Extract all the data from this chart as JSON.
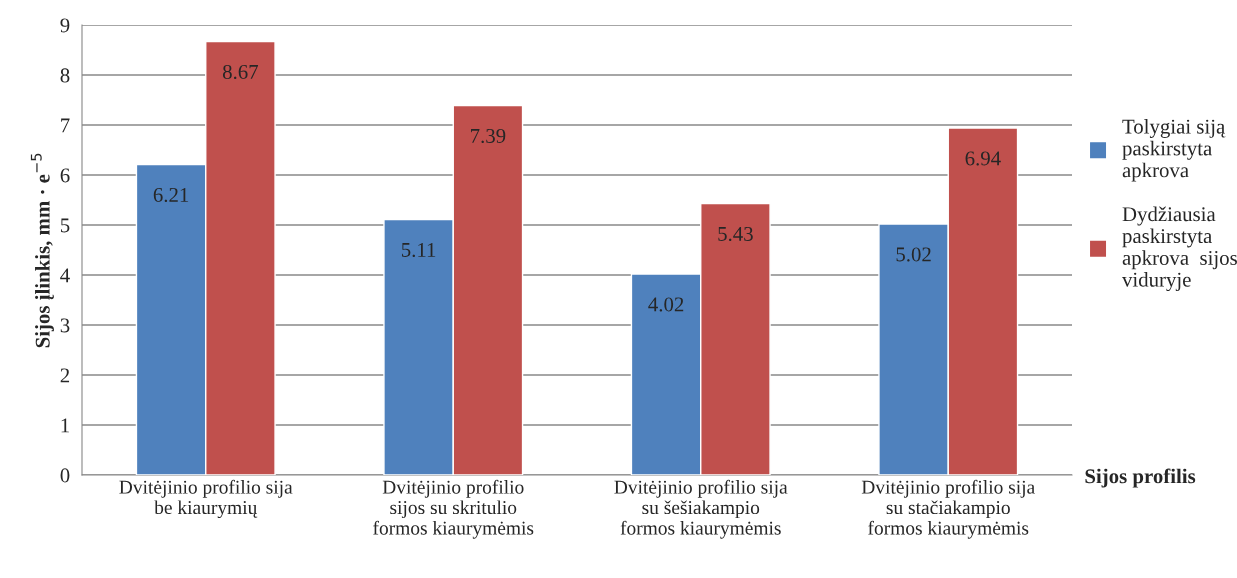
{
  "chart_data": {
    "type": "bar",
    "categories": [
      "Dvitėjinio profilio sija\nbe kiaurymių",
      "Dvitėjinio profilio\nsijos su skritulio\nformos kiaurymėmis",
      "Dvitėjinio profilio sija\nsu šešiakampio\nformos kiaurymėmis",
      "Dvitėjinio profilio sija\nsu stačiakampio\nformos kiaurymėmis"
    ],
    "series": [
      {
        "name": "Tolygiai siją\npaskirstyta\napkrova",
        "color": "#4f81bd",
        "values": [
          6.21,
          5.11,
          4.02,
          5.02
        ]
      },
      {
        "name": "Dydžiausia\npaskirstyta\napkrova  sijos\nviduryje",
        "color": "#c0504d",
        "values": [
          8.67,
          7.39,
          5.43,
          6.94
        ]
      }
    ],
    "xlabel": "Sijos profilis",
    "ylabel": "Sijos įlinkis, mm · e$^{−5}$",
    "ylim": [
      0,
      9
    ],
    "yticks": [
      0,
      1,
      2,
      3,
      4,
      5,
      6,
      7,
      8,
      9
    ],
    "grid": "y",
    "legend": "right",
    "data_labels": true
  }
}
